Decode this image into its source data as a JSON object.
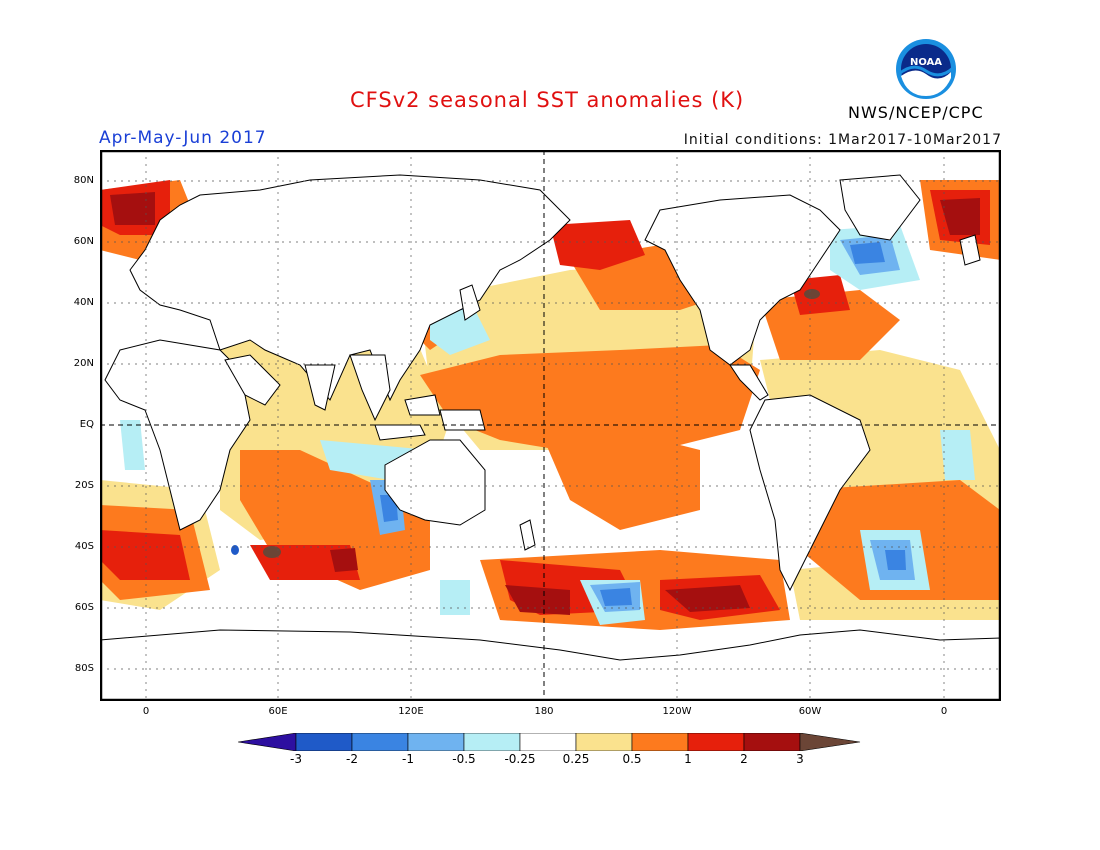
{
  "header": {
    "title": "CFSv2 seasonal SST anomalies (K)",
    "period": "Apr-May-Jun 2017",
    "initial_conditions": "Initial conditions: 1Mar2017-10Mar2017",
    "agency": "NWS/NCEP/CPC",
    "logo_text": "NOAA"
  },
  "axes": {
    "lat_labels": [
      "80N",
      "60N",
      "40N",
      "20N",
      "EQ",
      "20S",
      "40S",
      "60S",
      "80S"
    ],
    "lon_labels": [
      "0",
      "60E",
      "120E",
      "180",
      "120W",
      "60W",
      "0"
    ]
  },
  "colorbar": {
    "labels": [
      "-3",
      "-2",
      "-1",
      "-0.5",
      "-0.25",
      "0.25",
      "0.5",
      "1",
      "2",
      "3"
    ],
    "colors": [
      "#2d0fa0",
      "#1f5ac8",
      "#3a84e2",
      "#6fb3f0",
      "#b6eef5",
      "#ffffff",
      "#fae28e",
      "#fd7a1e",
      "#e6200c",
      "#a50f0f",
      "#6b4536"
    ]
  },
  "palette": {
    "ocean_pos_weak": "#fae28e",
    "ocean_pos_mod": "#fd7a1e",
    "ocean_pos_strong": "#e6200c",
    "ocean_pos_max": "#a50f0f",
    "ocean_neg_weak": "#b6eef5",
    "ocean_neg_mod": "#6fb3f0",
    "ocean_neg_strong": "#3a84e2",
    "extreme_pos": "#6b4536",
    "extreme_neg": "#1f5ac8"
  }
}
